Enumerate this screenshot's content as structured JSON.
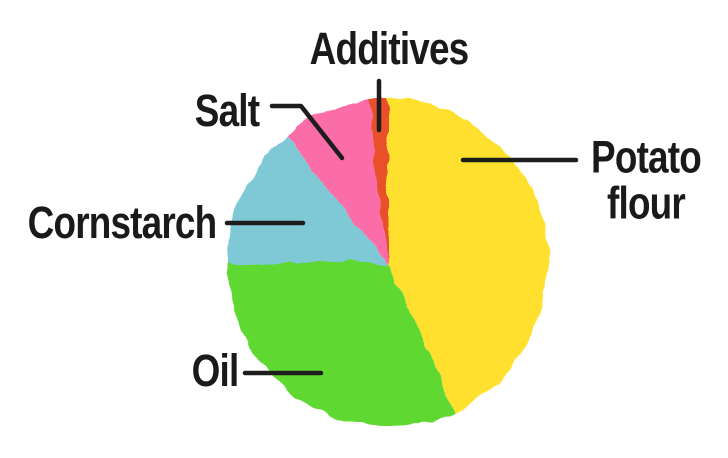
{
  "page": {
    "background": "#ffffff"
  },
  "chart_data": {
    "type": "pie",
    "title": "",
    "unit": "%",
    "start_angle_deg": 0,
    "direction": "clockwise",
    "legend_position": "none",
    "labels_style": "outside labels with leader lines",
    "slices": [
      {
        "label": "Potato flour",
        "value": 43,
        "color": "#FFE02E"
      },
      {
        "label": "Oil",
        "value": 32,
        "color": "#5FD931"
      },
      {
        "label": "Cornstarch",
        "value": 14,
        "color": "#7EC9D5"
      },
      {
        "label": "Salt",
        "value": 9,
        "color": "#FA6DA9"
      },
      {
        "label": "Additives",
        "value": 2,
        "color": "#E8502A"
      }
    ],
    "style": {
      "label_color": "#1a1a1a",
      "leader_line_color": "#1d1d1d"
    }
  }
}
